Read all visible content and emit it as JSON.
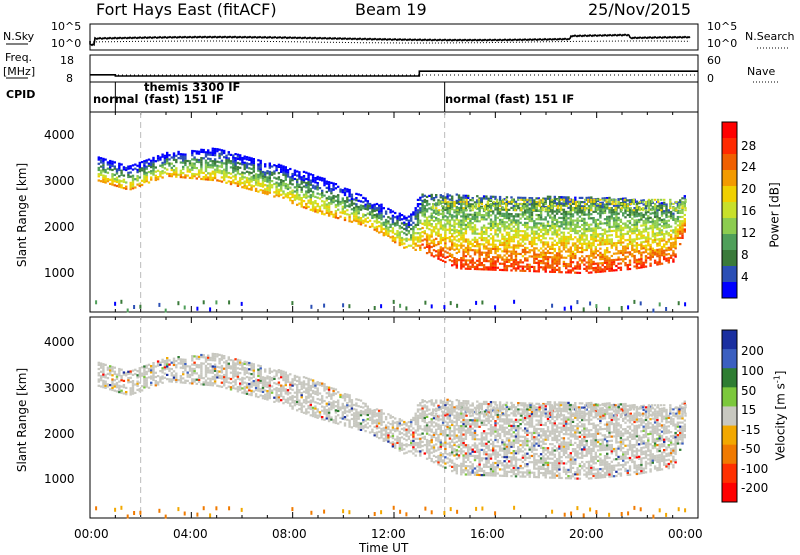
{
  "header": {
    "title": "Fort Hays East (fitACF)",
    "beam": "Beam 19",
    "date": "25/Nov/2015"
  },
  "noise_panel": {
    "left_label": "N.Sky",
    "left_ticks": [
      "10^5",
      "10^0"
    ],
    "right_label": "N.Search",
    "right_ticks": [
      "10^5",
      "10^0"
    ]
  },
  "freq_panel": {
    "left_label_1": "Freq.",
    "left_label_2": "[MHz]",
    "left_ticks": [
      "18",
      "8"
    ],
    "right_label": "Nave",
    "right_ticks": [
      "60",
      "0"
    ]
  },
  "cpid_panel": {
    "label": "CPID",
    "modes": [
      "normal",
      "themis 3300 IF",
      "(fast) 151 IF",
      "normal (fast) 151 IF"
    ]
  },
  "power_panel": {
    "ylabel": "Slant Range [km]",
    "yticks": [
      "4000",
      "3000",
      "2000",
      "1000"
    ],
    "colorbar_label": "Power [dB]",
    "colorbar_ticks": [
      "28",
      "24",
      "20",
      "16",
      "12",
      "8",
      "4"
    ],
    "colors": [
      "#0000ff",
      "#2b4fb5",
      "#3a7a3a",
      "#4f9f5a",
      "#8ccc50",
      "#c8e02a",
      "#f0d000",
      "#f39a00",
      "#f06000",
      "#ff2a00",
      "#ff0000"
    ]
  },
  "velocity_panel": {
    "ylabel": "Slant Range [km]",
    "yticks": [
      "4000",
      "3000",
      "2000",
      "1000"
    ],
    "colorbar_label": "Velocity [m s",
    "colorbar_label_sup": "-1",
    "colorbar_label_end": "]",
    "colorbar_ticks": [
      "200",
      "100",
      "50",
      "15",
      "-15",
      "-50",
      "-100",
      "-200"
    ],
    "colors": [
      "#1a2fa0",
      "#3b5fc0",
      "#2e7d32",
      "#7cc83c",
      "#c8c8c0",
      "#f2a800",
      "#f07a00",
      "#ff3000",
      "#ff0000"
    ]
  },
  "xaxis": {
    "ticks": [
      "00:00",
      "04:00",
      "08:00",
      "12:00",
      "16:00",
      "20:00",
      "00:00"
    ],
    "label": "Time UT"
  },
  "chart_data": {
    "type": "heatmap",
    "title": "Fort Hays East (fitACF)",
    "x_range_hours": [
      0,
      24
    ],
    "xlabel": "Time UT",
    "ylabel": "Slant Range [km]",
    "ylim": [
      180,
      4500
    ],
    "frequency_mhz": {
      "x_hours": [
        0,
        1.0,
        1.0,
        13.0,
        13.0,
        24
      ],
      "values": [
        11.0,
        11.0,
        10.5,
        10.5,
        12.5,
        12.5
      ]
    },
    "scatter_bands": [
      {
        "name": "main_echo_lower_edge_km",
        "x_hours": [
          0.3,
          1.5,
          3.0,
          5.0,
          7.0,
          9.0,
          11.0,
          12.5,
          13.0,
          14.5,
          17.0,
          19.5,
          21.5,
          23.0,
          23.5
        ],
        "values": [
          3000,
          2800,
          3100,
          3000,
          2700,
          2300,
          2000,
          1500,
          1500,
          1100,
          1050,
          1000,
          1100,
          1250,
          2000
        ]
      },
      {
        "name": "main_echo_upper_edge_km",
        "x_hours": [
          0.3,
          1.5,
          3.0,
          5.0,
          7.0,
          9.0,
          11.0,
          12.5,
          13.0,
          14.5,
          17.0,
          19.5,
          21.5,
          23.0,
          23.5
        ],
        "values": [
          3500,
          3300,
          3600,
          3700,
          3400,
          3100,
          2600,
          2200,
          2700,
          2700,
          2650,
          2650,
          2600,
          2500,
          2700
        ]
      }
    ],
    "power_colorbar_db": [
      4,
      8,
      12,
      16,
      20,
      24,
      28
    ],
    "velocity_colorbar_ms": [
      -200,
      -100,
      -50,
      -15,
      15,
      50,
      100,
      200
    ]
  }
}
